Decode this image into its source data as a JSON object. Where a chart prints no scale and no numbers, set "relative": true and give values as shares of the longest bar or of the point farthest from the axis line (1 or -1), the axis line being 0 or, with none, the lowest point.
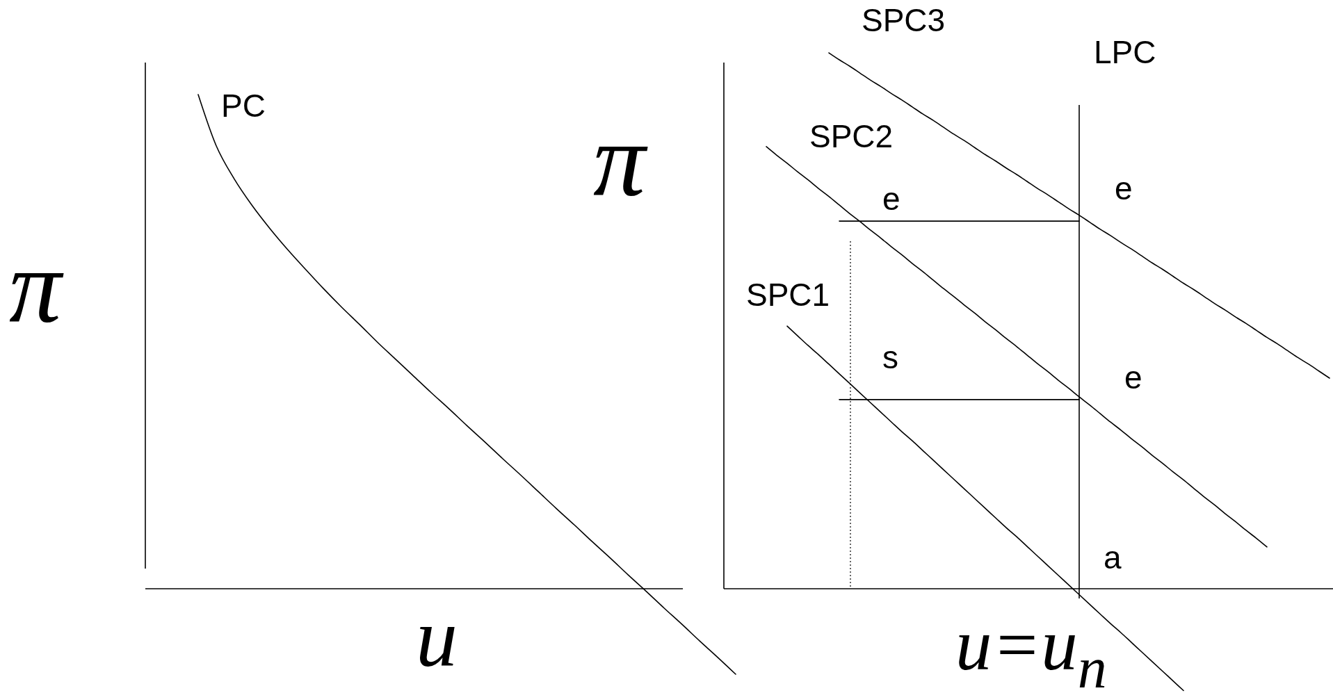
{
  "chart_data": [
    {
      "type": "line",
      "relative": true,
      "xlabel": "u",
      "ylabel": "π",
      "categories": [
        null,
        null,
        null,
        null,
        null,
        null,
        null,
        null,
        null,
        null,
        null,
        null,
        null,
        null,
        null,
        null,
        null,
        null,
        null,
        null,
        null,
        null,
        null,
        null,
        null,
        null,
        null,
        null,
        null,
        null,
        null
      ],
      "series": [
        {
          "name": "PC",
          "color": "#000000",
          "values": [
            1.0,
            0.897,
            0.83,
            0.776,
            0.729,
            0.686,
            0.646,
            0.607,
            0.57,
            0.535,
            0.499,
            0.465,
            0.431,
            0.397,
            0.364,
            0.33,
            0.297,
            0.263,
            0.23,
            0.196,
            0.162,
            0.129,
            0.095,
            0.062,
            0.028,
            -0.005,
            -0.039,
            -0.072,
            -0.106,
            -0.139,
            -0.173
          ]
        }
      ]
    },
    {
      "type": "line",
      "relative": true,
      "xlabel": "u=u$_{n}$",
      "ylabel": "π",
      "categories": [
        null,
        null,
        null,
        null,
        null,
        null,
        null,
        null,
        null,
        null,
        null,
        null,
        null,
        null,
        null,
        null,
        null,
        null,
        null,
        null,
        null,
        null,
        null,
        null,
        null,
        null,
        null,
        null,
        null,
        null,
        null,
        null,
        null,
        null,
        null,
        null,
        null,
        null,
        null,
        null,
        null,
        null,
        null,
        null,
        null,
        null,
        null,
        null,
        null,
        null,
        null,
        null,
        null,
        null,
        null
      ],
      "series": [
        {
          "name": "SPC3",
          "color": "#000000",
          "values": [
            null,
            null,
            null,
            null,
            null,
            null,
            1.0,
            0.987,
            0.975,
            0.962,
            0.949,
            0.937,
            0.924,
            0.912,
            0.899,
            0.886,
            0.874,
            0.861,
            0.848,
            0.836,
            0.823,
            0.81,
            0.798,
            0.785,
            0.773,
            0.76,
            0.747,
            0.735,
            0.722,
            0.709,
            0.697,
            0.684,
            0.671,
            0.659,
            0.646,
            0.634,
            0.621,
            0.608,
            0.596,
            0.583,
            0.57,
            0.558,
            0.545,
            0.532,
            0.52,
            0.507,
            0.495,
            0.482,
            0.469,
            0.457,
            0.444,
            0.431,
            0.419,
            0.406,
            0.393
          ]
        },
        {
          "name": "SPC2",
          "color": "#000000",
          "values": [
            0.825,
            0.809,
            0.794,
            0.778,
            0.763,
            0.747,
            0.732,
            0.716,
            0.7,
            0.685,
            0.669,
            0.654,
            0.638,
            0.623,
            0.607,
            0.592,
            0.576,
            0.56,
            0.545,
            0.529,
            0.514,
            0.498,
            0.483,
            0.467,
            0.452,
            0.436,
            0.42,
            0.405,
            0.389,
            0.374,
            0.358,
            0.343,
            0.327,
            0.311,
            0.296,
            0.28,
            0.265,
            0.249,
            0.234,
            0.218,
            0.203,
            0.187,
            0.171,
            0.156,
            0.14,
            0.125,
            0.109,
            0.094,
            0.078,
            null,
            null,
            null,
            null,
            null,
            null
          ]
        },
        {
          "name": "SPC1",
          "color": "#000000",
          "values": [
            null,
            null,
            0.49,
            0.472,
            0.454,
            0.437,
            0.419,
            0.401,
            0.383,
            0.365,
            0.347,
            0.329,
            0.311,
            0.293,
            0.276,
            0.258,
            0.24,
            0.222,
            0.204,
            0.186,
            0.168,
            0.15,
            0.132,
            0.114,
            0.097,
            0.079,
            0.061,
            0.043,
            0.025,
            0.007,
            -0.011,
            -0.029,
            -0.047,
            -0.065,
            -0.082,
            -0.1,
            -0.118,
            -0.136,
            -0.154,
            -0.172,
            -0.19,
            null,
            null,
            null,
            null,
            null,
            null,
            null,
            null,
            null,
            null,
            null,
            null,
            null,
            null
          ]
        },
        {
          "color": "#000000",
          "values": [
            null,
            null,
            null,
            null,
            null,
            null,
            null,
            0.686,
            0.686,
            0.686,
            0.686,
            0.686,
            0.686,
            0.686,
            0.686,
            0.686,
            0.686,
            0.686,
            0.686,
            0.686,
            0.686,
            0.686,
            0.686,
            0.686,
            0.686,
            0.686,
            0.686,
            0.686,
            0.686,
            0.686,
            0.686,
            null,
            null,
            null,
            null,
            null,
            null,
            null,
            null,
            null,
            null,
            null,
            null,
            null,
            null,
            null,
            null,
            null,
            null,
            null,
            null,
            null,
            null,
            null,
            null
          ]
        },
        {
          "color": "#000000",
          "values": [
            null,
            null,
            null,
            null,
            null,
            null,
            null,
            0.353,
            0.353,
            0.353,
            0.353,
            0.353,
            0.353,
            0.353,
            0.353,
            0.353,
            0.353,
            0.353,
            0.353,
            0.353,
            0.353,
            0.353,
            0.353,
            0.353,
            0.353,
            0.353,
            0.353,
            0.353,
            0.353,
            0.353,
            0.353,
            null,
            null,
            null,
            null,
            null,
            null,
            null,
            null,
            null,
            null,
            null,
            null,
            null,
            null,
            null,
            null,
            null,
            null,
            null,
            null,
            null,
            null,
            null,
            null
          ]
        }
      ],
      "annotations": [
        {
          "text": "e",
          "y": 0.686
        },
        "e",
        {
          "text": "s",
          "y": 0.353
        },
        "e",
        "a",
        "LPC"
      ]
    }
  ]
}
